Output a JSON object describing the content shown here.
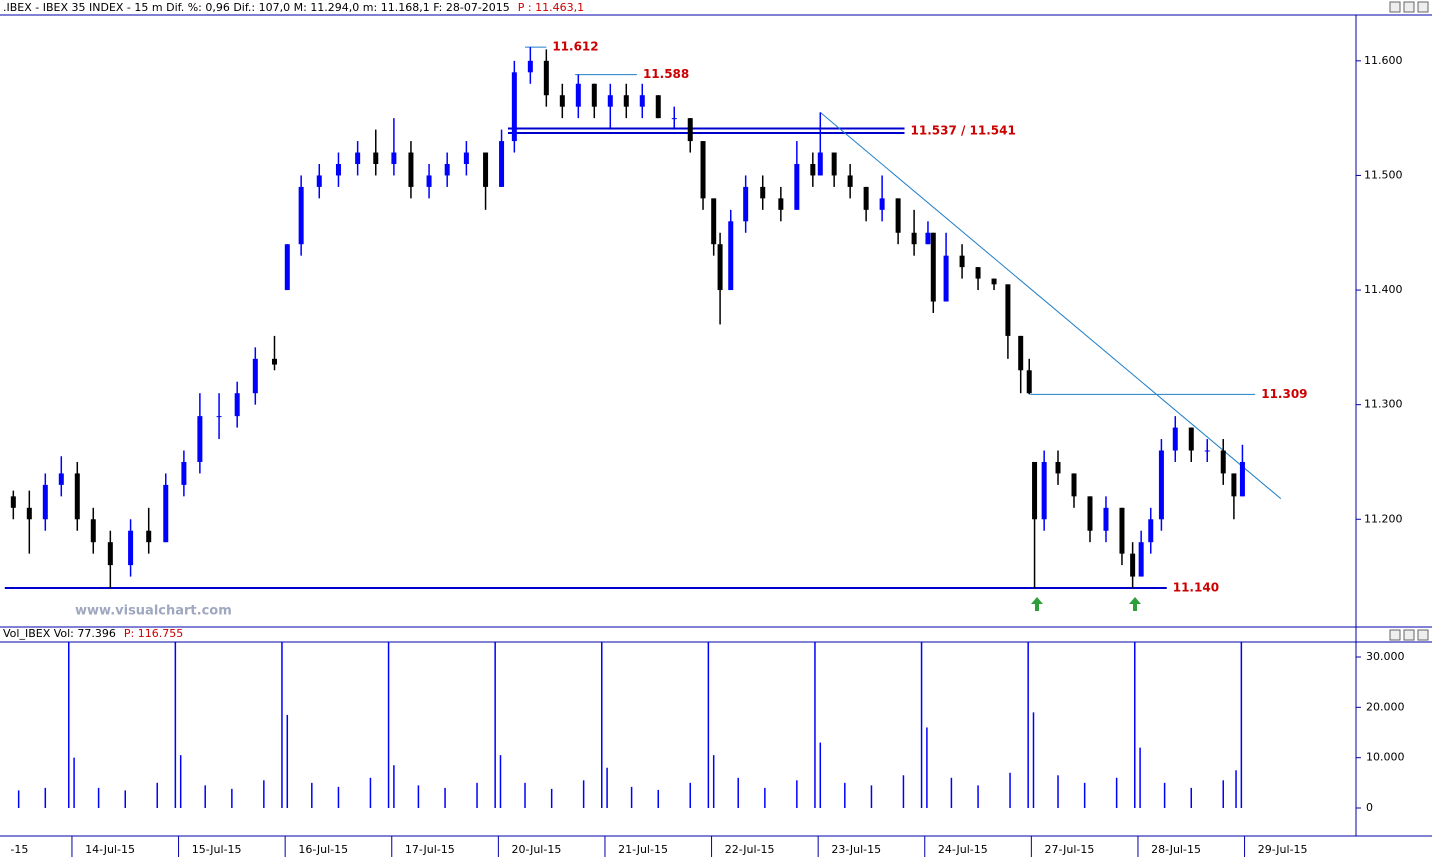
{
  "chart_data": [
    {
      "type": "candlestick",
      "title": ".IBEX - IBEX 35 INDEX - 15 m  Dif. %: 0,96  Dif.: 107,0  M: 11.294,0  m: 11.168,1  F: 28-07-2015",
      "subtitle": "P : 11.463,1",
      "watermark": "www.visualchart.com",
      "up_color": "#0000ff",
      "down_color": "#000000",
      "xlim": [
        -0.675,
        12.036
      ],
      "ylim": [
        11.106,
        11.64
      ],
      "yticks": [
        {
          "value": 11.2,
          "label": "11.200"
        },
        {
          "value": 11.3,
          "label": "11.300"
        },
        {
          "value": 11.4,
          "label": "11.400"
        },
        {
          "value": 11.5,
          "label": "11.500"
        },
        {
          "value": 11.6,
          "label": "11.600"
        }
      ],
      "x": [
        -0.55,
        -0.4,
        -0.25,
        -0.1,
        0.05,
        0.2,
        0.36,
        0.55,
        0.72,
        0.88,
        1.05,
        1.2,
        1.38,
        1.55,
        1.72,
        1.9,
        2.02,
        2.15,
        2.32,
        2.5,
        2.68,
        2.85,
        3.02,
        3.18,
        3.35,
        3.52,
        3.7,
        3.88,
        4.03,
        4.15,
        4.3,
        4.45,
        4.6,
        4.75,
        4.9,
        5.05,
        5.2,
        5.35,
        5.5,
        5.65,
        5.8,
        5.92,
        6.02,
        6.08,
        6.18,
        6.32,
        6.48,
        6.65,
        6.8,
        6.95,
        7.02,
        7.15,
        7.3,
        7.45,
        7.6,
        7.75,
        7.9,
        8.03,
        8.08,
        8.2,
        8.35,
        8.5,
        8.65,
        8.78,
        8.9,
        8.98,
        9.03,
        9.12,
        9.25,
        9.4,
        9.55,
        9.7,
        9.85,
        9.95,
        10.03,
        10.12,
        10.22,
        10.35,
        10.5,
        10.65,
        10.8,
        10.9,
        10.98
      ],
      "open": [
        11.22,
        11.21,
        11.2,
        11.23,
        11.24,
        11.2,
        11.18,
        11.16,
        11.19,
        11.18,
        11.23,
        11.25,
        11.29,
        11.29,
        11.31,
        11.34,
        11.4,
        11.44,
        11.49,
        11.5,
        11.51,
        11.52,
        11.51,
        11.52,
        11.49,
        11.5,
        11.51,
        11.52,
        11.49,
        11.53,
        11.59,
        11.6,
        11.57,
        11.56,
        11.58,
        11.56,
        11.57,
        11.56,
        11.57,
        11.55,
        11.55,
        11.53,
        11.48,
        11.44,
        11.4,
        11.46,
        11.49,
        11.48,
        11.47,
        11.51,
        11.5,
        11.52,
        11.5,
        11.49,
        11.47,
        11.48,
        11.45,
        11.44,
        11.45,
        11.39,
        11.43,
        11.42,
        11.41,
        11.405,
        11.36,
        11.33,
        11.25,
        11.2,
        11.25,
        11.24,
        11.22,
        11.19,
        11.21,
        11.17,
        11.15,
        11.18,
        11.2,
        11.26,
        11.28,
        11.26,
        11.26,
        11.24,
        11.22
      ],
      "high": [
        11.225,
        11.225,
        11.24,
        11.255,
        11.25,
        11.21,
        11.19,
        11.2,
        11.21,
        11.24,
        11.26,
        11.31,
        11.31,
        11.32,
        11.35,
        11.36,
        11.44,
        11.5,
        11.51,
        11.52,
        11.53,
        11.54,
        11.55,
        11.53,
        11.51,
        11.52,
        11.53,
        11.52,
        11.54,
        11.6,
        11.612,
        11.61,
        11.58,
        11.588,
        11.58,
        11.58,
        11.58,
        11.58,
        11.57,
        11.56,
        11.55,
        11.53,
        11.48,
        11.45,
        11.47,
        11.5,
        11.5,
        11.49,
        11.53,
        11.52,
        11.555,
        11.52,
        11.51,
        11.49,
        11.5,
        11.48,
        11.47,
        11.46,
        11.45,
        11.45,
        11.44,
        11.42,
        11.41,
        11.405,
        11.36,
        11.34,
        11.25,
        11.26,
        11.26,
        11.24,
        11.22,
        11.22,
        11.21,
        11.18,
        11.19,
        11.21,
        11.27,
        11.29,
        11.28,
        11.27,
        11.27,
        11.24,
        11.265
      ],
      "low": [
        11.2,
        11.17,
        11.19,
        11.22,
        11.19,
        11.17,
        11.14,
        11.15,
        11.17,
        11.18,
        11.22,
        11.24,
        11.27,
        11.28,
        11.3,
        11.33,
        11.4,
        11.43,
        11.48,
        11.49,
        11.5,
        11.5,
        11.5,
        11.48,
        11.48,
        11.49,
        11.5,
        11.47,
        11.49,
        11.52,
        11.58,
        11.56,
        11.55,
        11.55,
        11.55,
        11.54,
        11.55,
        11.55,
        11.55,
        11.54,
        11.52,
        11.47,
        11.43,
        11.37,
        11.4,
        11.45,
        11.47,
        11.46,
        11.47,
        11.49,
        11.5,
        11.49,
        11.48,
        11.46,
        11.46,
        11.44,
        11.43,
        11.44,
        11.38,
        11.39,
        11.41,
        11.4,
        11.4,
        11.34,
        11.31,
        11.309,
        11.14,
        11.19,
        11.23,
        11.21,
        11.18,
        11.18,
        11.16,
        11.14,
        11.15,
        11.17,
        11.19,
        11.25,
        11.25,
        11.25,
        11.23,
        11.2,
        11.22
      ],
      "close": [
        11.21,
        11.2,
        11.23,
        11.24,
        11.2,
        11.18,
        11.16,
        11.19,
        11.18,
        11.23,
        11.25,
        11.29,
        11.29,
        11.31,
        11.34,
        11.335,
        11.44,
        11.49,
        11.5,
        11.51,
        11.52,
        11.51,
        11.52,
        11.49,
        11.5,
        11.51,
        11.52,
        11.49,
        11.53,
        11.59,
        11.6,
        11.57,
        11.56,
        11.58,
        11.56,
        11.57,
        11.56,
        11.57,
        11.55,
        11.55,
        11.53,
        11.48,
        11.44,
        11.4,
        11.46,
        11.49,
        11.48,
        11.47,
        11.51,
        11.5,
        11.52,
        11.5,
        11.49,
        11.47,
        11.48,
        11.45,
        11.44,
        11.45,
        11.39,
        11.43,
        11.42,
        11.41,
        11.405,
        11.36,
        11.33,
        11.31,
        11.2,
        11.25,
        11.24,
        11.22,
        11.19,
        11.21,
        11.17,
        11.15,
        11.18,
        11.2,
        11.26,
        11.28,
        11.26,
        11.26,
        11.24,
        11.22,
        11.25
      ],
      "levels": [
        {
          "label": "11.612",
          "values": [
            11.612
          ],
          "from": 4.25,
          "to": 4.45,
          "color": "#1f7fc8"
        },
        {
          "label": "11.588",
          "values": [
            11.588
          ],
          "from": 4.72,
          "to": 5.3,
          "color": "#1f7fc8"
        },
        {
          "label": "11.537 / 11.541",
          "values": [
            11.537,
            11.541
          ],
          "from": 4.09,
          "to": 7.81,
          "color": "#0000cc"
        },
        {
          "label": "11.309",
          "values": [
            11.309
          ],
          "from": 8.99,
          "to": 11.1,
          "color": "#1f7fc8"
        },
        {
          "label": "11.140",
          "values": [
            11.14
          ],
          "from": -0.63,
          "to": 10.27,
          "color": "#0000cc"
        }
      ],
      "level_label_color": "#cc0000",
      "trendline": {
        "x": [
          7.02,
          11.34
        ],
        "y": [
          11.555,
          11.218
        ],
        "color": "#1f7fc8"
      }
    },
    {
      "type": "bar",
      "title": "Vol_IBEX Vol: 77.396",
      "subtitle": "P: 116.755",
      "color": "#0000ff",
      "xlim": [
        -0.675,
        12.036
      ],
      "ylim": [
        -5560,
        32980
      ],
      "yticks": [
        0,
        {
          "value": 10000,
          "label": "10.000"
        },
        {
          "value": 20000,
          "label": "20.000"
        },
        {
          "value": 30000,
          "label": "30.000"
        }
      ],
      "xticks": [
        {
          "value": -1,
          "label": "-15"
        },
        {
          "value": 0,
          "label": "14-Jul-15"
        },
        {
          "value": 1,
          "label": "15-Jul-15"
        },
        {
          "value": 2,
          "label": "16-Jul-15"
        },
        {
          "value": 3,
          "label": "17-Jul-15"
        },
        {
          "value": 4,
          "label": "20-Jul-15"
        },
        {
          "value": 5,
          "label": "21-Jul-15"
        },
        {
          "value": 6,
          "label": "22-Jul-15"
        },
        {
          "value": 7,
          "label": "23-Jul-15"
        },
        {
          "value": 8,
          "label": "24-Jul-15"
        },
        {
          "value": 9,
          "label": "27-Jul-15"
        },
        {
          "value": 10,
          "label": "28-Jul-15"
        },
        {
          "value": 11,
          "label": "29-Jul-15"
        }
      ],
      "x": [
        -0.5,
        -0.25,
        -0.03,
        0.02,
        0.25,
        0.5,
        0.8,
        0.97,
        1.02,
        1.25,
        1.5,
        1.8,
        1.97,
        2.02,
        2.25,
        2.5,
        2.8,
        2.97,
        3.02,
        3.25,
        3.5,
        3.8,
        3.97,
        4.02,
        4.25,
        4.5,
        4.8,
        4.97,
        5.02,
        5.25,
        5.5,
        5.8,
        5.97,
        6.02,
        6.25,
        6.5,
        6.8,
        6.97,
        7.02,
        7.25,
        7.5,
        7.8,
        7.97,
        8.02,
        8.25,
        8.5,
        8.8,
        8.97,
        9.02,
        9.25,
        9.5,
        9.8,
        9.97,
        10.02,
        10.25,
        10.5,
        10.8,
        10.92,
        10.97
      ],
      "values": [
        3500,
        4000,
        32900,
        10000,
        4000,
        3500,
        5000,
        32900,
        10500,
        4500,
        3800,
        5500,
        32900,
        18500,
        5000,
        4200,
        6000,
        32900,
        8500,
        4500,
        4000,
        5000,
        32900,
        10500,
        5000,
        3800,
        5500,
        32900,
        8000,
        4200,
        3600,
        5000,
        32900,
        10500,
        6000,
        4000,
        5500,
        32900,
        13000,
        5000,
        4500,
        6500,
        32900,
        16000,
        6000,
        4500,
        7000,
        32900,
        19000,
        6500,
        5000,
        6000,
        32900,
        12000,
        5000,
        4000,
        5500,
        7500,
        32900
      ]
    }
  ]
}
